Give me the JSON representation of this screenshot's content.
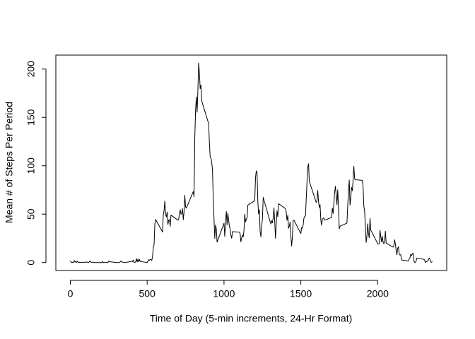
{
  "chart_data": {
    "type": "line",
    "x_label": "Time of Day (5-min increments, 24-Hr Format)",
    "y_label": "Mean # of Steps Per Period",
    "x": [
      0,
      5,
      10,
      15,
      20,
      25,
      30,
      35,
      40,
      45,
      50,
      55,
      100,
      105,
      110,
      115,
      120,
      125,
      130,
      135,
      140,
      145,
      150,
      155,
      200,
      205,
      210,
      215,
      220,
      225,
      230,
      235,
      240,
      245,
      250,
      255,
      300,
      305,
      310,
      315,
      320,
      325,
      330,
      335,
      340,
      345,
      350,
      355,
      400,
      405,
      410,
      415,
      420,
      425,
      430,
      435,
      440,
      445,
      450,
      455,
      500,
      505,
      510,
      515,
      520,
      525,
      530,
      535,
      540,
      545,
      550,
      555,
      600,
      605,
      610,
      615,
      620,
      625,
      630,
      635,
      640,
      645,
      650,
      655,
      700,
      705,
      710,
      715,
      720,
      725,
      730,
      735,
      740,
      745,
      750,
      755,
      800,
      805,
      810,
      815,
      820,
      825,
      830,
      835,
      840,
      845,
      850,
      855,
      900,
      905,
      910,
      915,
      920,
      925,
      930,
      935,
      940,
      945,
      950,
      955,
      1000,
      1005,
      1010,
      1015,
      1020,
      1025,
      1030,
      1035,
      1040,
      1045,
      1050,
      1055,
      1100,
      1105,
      1110,
      1115,
      1120,
      1125,
      1130,
      1135,
      1140,
      1145,
      1150,
      1155,
      1200,
      1205,
      1210,
      1215,
      1220,
      1225,
      1230,
      1235,
      1240,
      1245,
      1250,
      1255,
      1300,
      1305,
      1310,
      1315,
      1320,
      1325,
      1330,
      1335,
      1340,
      1345,
      1350,
      1355,
      1400,
      1405,
      1410,
      1415,
      1420,
      1425,
      1430,
      1435,
      1440,
      1445,
      1450,
      1455,
      1500,
      1505,
      1510,
      1515,
      1520,
      1525,
      1530,
      1535,
      1540,
      1545,
      1550,
      1555,
      1600,
      1605,
      1610,
      1615,
      1620,
      1625,
      1630,
      1635,
      1640,
      1645,
      1650,
      1655,
      1700,
      1705,
      1710,
      1715,
      1720,
      1725,
      1730,
      1735,
      1740,
      1745,
      1750,
      1755,
      1800,
      1805,
      1810,
      1815,
      1820,
      1825,
      1830,
      1835,
      1840,
      1845,
      1850,
      1855,
      1900,
      1905,
      1910,
      1915,
      1920,
      1925,
      1930,
      1935,
      1940,
      1945,
      1950,
      1955,
      2000,
      2005,
      2010,
      2015,
      2020,
      2025,
      2030,
      2035,
      2040,
      2045,
      2050,
      2055,
      2100,
      2105,
      2110,
      2115,
      2120,
      2125,
      2130,
      2135,
      2140,
      2145,
      2150,
      2155,
      2200,
      2205,
      2210,
      2215,
      2220,
      2225,
      2230,
      2235,
      2240,
      2245,
      2250,
      2255,
      2300,
      2305,
      2310,
      2315,
      2320,
      2325,
      2330,
      2335,
      2340,
      2345,
      2350,
      2355
    ],
    "values": [
      1.7,
      0.3,
      0.1,
      0.2,
      0.1,
      2.1,
      0.5,
      0.9,
      0,
      1.5,
      0.3,
      0.1,
      0.3,
      0.7,
      0.2,
      0.3,
      0,
      1.1,
      1.8,
      0.2,
      0.2,
      0.4,
      0.3,
      0,
      0,
      0,
      1.1,
      0,
      0,
      0.1,
      0,
      0.2,
      0,
      0,
      1.5,
      0.9,
      0,
      0,
      0,
      0,
      0.2,
      0.6,
      1.6,
      0.6,
      0.5,
      0.1,
      0,
      0,
      1.2,
      0.9,
      2.6,
      0,
      0.3,
      0.4,
      4.1,
      0.7,
      3.5,
      0.8,
      3.1,
      1.1,
      0,
      1.6,
      3,
      2.2,
      3.3,
      3,
      2.1,
      6.1,
      16,
      18.3,
      39.5,
      44.5,
      31.5,
      49.3,
      53.8,
      63.5,
      50,
      47.1,
      52.2,
      39.3,
      44,
      44.2,
      37.4,
      49,
      43.8,
      44.4,
      50.5,
      54.5,
      49.9,
      51,
      55.7,
      44.3,
      52.3,
      69.5,
      57.8,
      56.2,
      73.4,
      68.2,
      129.4,
      157.5,
      171.2,
      155.4,
      177.3,
      206.2,
      195.9,
      179.6,
      183.4,
      167,
      143.5,
      124,
      109.1,
      108.1,
      103.7,
      95.97,
      66.2,
      45.2,
      24.8,
      38.8,
      34.98,
      21.1,
      40.6,
      26.98,
      42.4,
      52.7,
      38.9,
      50.8,
      44.3,
      37.4,
      34.7,
      28.3,
      25.1,
      31.9,
      31.4,
      29.7,
      21.3,
      25.5,
      28.4,
      26.5,
      33.4,
      50,
      42,
      44.6,
      46,
      59.3,
      63.9,
      87.7,
      94.8,
      92.8,
      63.4,
      50.2,
      54.5,
      32.4,
      26.5,
      37.7,
      45.1,
      67.3,
      42.3,
      39.9,
      43.3,
      40.98,
      46.2,
      56.4,
      42.75,
      25.1,
      39.96,
      53.5,
      47.3,
      60.8,
      55.75,
      51.96,
      43.6,
      48.7,
      35.5,
      37.5,
      41.8,
      27.5,
      17.1,
      26.1,
      43.6,
      43.8,
      30,
      36.1,
      35.5,
      38.8,
      45.96,
      47.75,
      48.1,
      65.3,
      82.9,
      98.7,
      102.1,
      83.96,
      62.1,
      64.1,
      74.5,
      63.2,
      56.9,
      59.8,
      43.9,
      38.6,
      44.7,
      45.5,
      46.2,
      43.7,
      46.6,
      56.3,
      50.7,
      61.2,
      72.7,
      78.9,
      68.9,
      59.7,
      75.1,
      56.5,
      34.8,
      37.5,
      40.7,
      58,
      74.7,
      85.3,
      59.3,
      67.8,
      77.7,
      74.2,
      85.3,
      99.5,
      86.6,
      85.6,
      84.9,
      77.8,
      58,
      53.4,
      36.3,
      20.7,
      27.4,
      40,
      30.2,
      25.5,
      45.7,
      33.5,
      19.6,
      19,
      19.3,
      33.3,
      26.8,
      21.2,
      27.3,
      21.3,
      19.5,
      21.3,
      32.3,
      20.2,
      15.9,
      17.2,
      23.5,
      19.2,
      12.5,
      8,
      14.7,
      16.3,
      8.7,
      7.8,
      8.1,
      2.6,
      1.5,
      3.7,
      4.8,
      8.5,
      7.1,
      8.7,
      9.8,
      2.2,
      0.3,
      0.1,
      1.6,
      4.6,
      3.3,
      2.8,
      0,
      0.8,
      0.96,
      1.6,
      2.6,
      4.7,
      3.3,
      0.6,
      0.2,
      1.1
    ],
    "color": "#000000",
    "xlim": [
      -94.2,
      2449.2
    ],
    "ylim": [
      -8.25,
      214.42
    ],
    "xticks": [
      0,
      500,
      1000,
      1500,
      2000
    ],
    "yticks": [
      0,
      50,
      100,
      150,
      200
    ],
    "grid": false
  }
}
